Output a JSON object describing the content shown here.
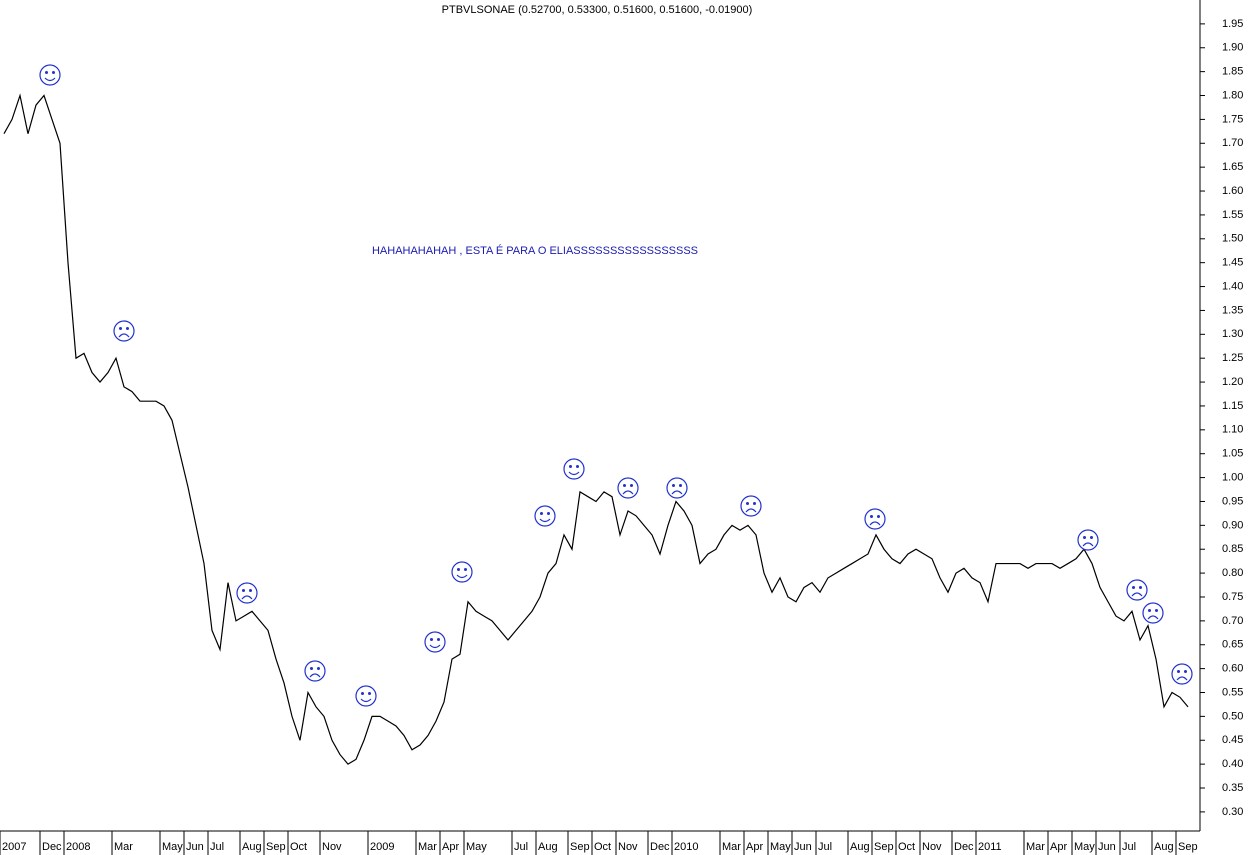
{
  "chart_data": {
    "type": "line",
    "title": "PTBVLSONAE (0.52700, 0.53300, 0.51600, 0.51600, -0.01900)",
    "annotation": "HAHAHAHAHAH , ESTA É PARA O ELIASSSSSSSSSSSSSSSSS",
    "color": "#000000",
    "categories": [
      "2007",
      null,
      null,
      null,
      null,
      "Dec",
      null,
      null,
      "2008",
      null,
      null,
      null,
      null,
      null,
      "Mar",
      null,
      null,
      null,
      null,
      null,
      "May",
      null,
      null,
      "Jun",
      null,
      null,
      "Jul",
      null,
      null,
      null,
      "Aug",
      null,
      null,
      "Sep",
      null,
      null,
      "Oct",
      null,
      null,
      null,
      "Nov",
      null,
      null,
      null,
      null,
      null,
      "2009",
      null,
      null,
      null,
      null,
      null,
      "Mar",
      null,
      null,
      "Apr",
      null,
      null,
      "May",
      null,
      null,
      null,
      null,
      null,
      "Jul",
      null,
      null,
      "Aug",
      null,
      null,
      null,
      "Sep",
      null,
      null,
      "Oct",
      null,
      null,
      "Nov",
      null,
      null,
      null,
      "Dec",
      null,
      null,
      "2010",
      null,
      null,
      null,
      null,
      null,
      "Mar",
      null,
      null,
      "Apr",
      null,
      null,
      "May",
      null,
      null,
      "Jun",
      null,
      null,
      "Jul",
      null,
      null,
      null,
      "Aug",
      null,
      null,
      "Sep",
      null,
      null,
      "Oct",
      null,
      null,
      "Nov",
      null,
      null,
      null,
      "Dec",
      null,
      null,
      "2011",
      null,
      null,
      null,
      null,
      null,
      "Mar",
      null,
      null,
      "Apr",
      null,
      null,
      "May",
      null,
      null,
      "Jun",
      null,
      null,
      "Jul",
      null,
      null,
      null,
      "Aug",
      null,
      null,
      "Sep",
      null
    ],
    "values": [
      1.72,
      1.75,
      1.8,
      1.72,
      1.78,
      1.8,
      1.75,
      1.7,
      1.45,
      1.25,
      1.26,
      1.22,
      1.2,
      1.22,
      1.25,
      1.19,
      1.18,
      1.16,
      1.16,
      1.16,
      1.15,
      1.12,
      1.05,
      0.98,
      0.9,
      0.82,
      0.68,
      0.64,
      0.78,
      0.7,
      0.71,
      0.72,
      0.7,
      0.68,
      0.62,
      0.57,
      0.5,
      0.45,
      0.55,
      0.52,
      0.5,
      0.45,
      0.42,
      0.4,
      0.41,
      0.45,
      0.5,
      0.5,
      0.49,
      0.48,
      0.46,
      0.43,
      0.44,
      0.46,
      0.49,
      0.53,
      0.62,
      0.63,
      0.74,
      0.72,
      0.71,
      0.7,
      0.68,
      0.66,
      0.68,
      0.7,
      0.72,
      0.75,
      0.8,
      0.82,
      0.88,
      0.85,
      0.97,
      0.96,
      0.95,
      0.97,
      0.96,
      0.88,
      0.93,
      0.92,
      0.9,
      0.88,
      0.84,
      0.9,
      0.95,
      0.93,
      0.9,
      0.82,
      0.84,
      0.85,
      0.88,
      0.9,
      0.89,
      0.9,
      0.88,
      0.8,
      0.76,
      0.79,
      0.75,
      0.74,
      0.77,
      0.78,
      0.76,
      0.79,
      0.8,
      0.81,
      0.82,
      0.83,
      0.84,
      0.88,
      0.85,
      0.83,
      0.82,
      0.84,
      0.85,
      0.84,
      0.83,
      0.79,
      0.76,
      0.8,
      0.81,
      0.79,
      0.78,
      0.74,
      0.82,
      0.82,
      0.82,
      0.82,
      0.81,
      0.82,
      0.82,
      0.82,
      0.81,
      0.82,
      0.83,
      0.85,
      0.82,
      0.77,
      0.74,
      0.71,
      0.7,
      0.72,
      0.66,
      0.69,
      0.62,
      0.52,
      0.55,
      0.54,
      0.52
    ],
    "ylim": [
      0.26,
      2.0
    ],
    "yticks": [
      {
        "value": 0.3,
        "label": "0.30"
      },
      {
        "value": 0.35,
        "label": "0.35"
      },
      {
        "value": 0.4,
        "label": "0.40"
      },
      {
        "value": 0.45,
        "label": "0.45"
      },
      {
        "value": 0.5,
        "label": "0.50"
      },
      {
        "value": 0.55,
        "label": "0.55"
      },
      {
        "value": 0.6,
        "label": "0.60"
      },
      {
        "value": 0.65,
        "label": "0.65"
      },
      {
        "value": 0.7,
        "label": "0.70"
      },
      {
        "value": 0.75,
        "label": "0.75"
      },
      {
        "value": 0.8,
        "label": "0.80"
      },
      {
        "value": 0.85,
        "label": "0.85"
      },
      {
        "value": 0.9,
        "label": "0.90"
      },
      {
        "value": 0.95,
        "label": "0.95"
      },
      {
        "value": 1.0,
        "label": "1.00"
      },
      {
        "value": 1.05,
        "label": "1.05"
      },
      {
        "value": 1.1,
        "label": "1.10"
      },
      {
        "value": 1.15,
        "label": "1.15"
      },
      {
        "value": 1.2,
        "label": "1.20"
      },
      {
        "value": 1.25,
        "label": "1.25"
      },
      {
        "value": 1.3,
        "label": "1.30"
      },
      {
        "value": 1.35,
        "label": "1.35"
      },
      {
        "value": 1.4,
        "label": "1.40"
      },
      {
        "value": 1.45,
        "label": "1.45"
      },
      {
        "value": 1.5,
        "label": "1.50"
      },
      {
        "value": 1.55,
        "label": "1.55"
      },
      {
        "value": 1.6,
        "label": "1.60"
      },
      {
        "value": 1.65,
        "label": "1.65"
      },
      {
        "value": 1.7,
        "label": "1.70"
      },
      {
        "value": 1.75,
        "label": "1.75"
      },
      {
        "value": 1.8,
        "label": "1.80"
      },
      {
        "value": 1.85,
        "label": "1.85"
      },
      {
        "value": 1.9,
        "label": "1.90"
      },
      {
        "value": 1.95,
        "label": "1.95"
      }
    ],
    "grid": false
  }
}
